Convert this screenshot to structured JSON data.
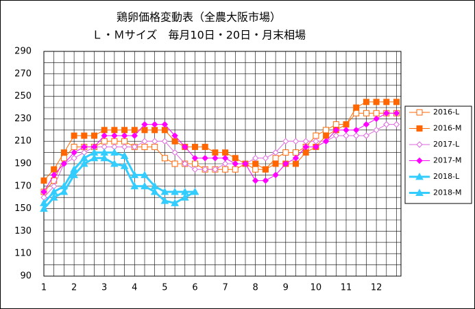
{
  "chart_data": {
    "type": "line",
    "title": "鶏卵価格変動表（全農大阪市場）",
    "subtitle": "Ｌ・Ｍサイズ　毎月10日・20日・月末相場",
    "categories": [
      "1",
      null,
      null,
      "2",
      null,
      null,
      "3",
      null,
      null,
      "4",
      null,
      null,
      "5",
      null,
      null,
      "6",
      null,
      null,
      "7",
      null,
      null,
      "8",
      null,
      null,
      "9",
      null,
      null,
      "10",
      null,
      null,
      "11",
      null,
      null,
      "12",
      null,
      null
    ],
    "ylim": [
      90,
      290
    ],
    "yticks": [
      90,
      110,
      130,
      150,
      170,
      190,
      210,
      230,
      250,
      270,
      290
    ],
    "grid": true,
    "legend": "right",
    "series": [
      {
        "name": "2016-L",
        "color": "#ff6600",
        "marker": "square",
        "filled": false,
        "width": 1,
        "values": [
          165,
          175,
          195,
          205,
          205,
          205,
          210,
          210,
          210,
          205,
          205,
          205,
          195,
          190,
          190,
          190,
          185,
          185,
          185,
          185,
          190,
          185,
          185,
          195,
          200,
          200,
          205,
          215,
          220,
          225,
          225,
          235,
          235,
          235,
          235,
          235
        ]
      },
      {
        "name": "2016-M",
        "color": "#ff6600",
        "marker": "square",
        "filled": true,
        "width": 1,
        "values": [
          175,
          185,
          200,
          215,
          215,
          215,
          220,
          220,
          220,
          220,
          220,
          220,
          220,
          210,
          205,
          205,
          205,
          200,
          200,
          195,
          190,
          190,
          185,
          190,
          190,
          190,
          200,
          205,
          215,
          220,
          225,
          240,
          245,
          245,
          245,
          245
        ]
      },
      {
        "name": "2017-L",
        "color": "#dd66dd",
        "marker": "diamond",
        "filled": false,
        "width": 1,
        "values": [
          160,
          170,
          190,
          195,
          200,
          205,
          205,
          205,
          205,
          205,
          210,
          210,
          210,
          200,
          190,
          185,
          185,
          185,
          190,
          190,
          190,
          195,
          195,
          200,
          210,
          210,
          210,
          210,
          210,
          215,
          215,
          215,
          215,
          220,
          225,
          225
        ]
      },
      {
        "name": "2017-M",
        "color": "#ff00ff",
        "marker": "diamond",
        "filled": true,
        "width": 1,
        "values": [
          165,
          180,
          190,
          200,
          205,
          205,
          215,
          215,
          215,
          215,
          225,
          225,
          225,
          215,
          205,
          195,
          195,
          195,
          195,
          190,
          190,
          175,
          175,
          180,
          190,
          195,
          205,
          205,
          210,
          220,
          220,
          220,
          225,
          230,
          235,
          235
        ]
      },
      {
        "name": "2018-L",
        "color": "#33ccff",
        "marker": "triangle",
        "filled": false,
        "width": 3,
        "values": [
          150,
          160,
          165,
          180,
          190,
          195,
          195,
          190,
          188,
          170,
          170,
          165,
          157,
          155,
          160,
          165,
          null,
          null,
          null,
          null,
          null,
          null,
          null,
          null,
          null,
          null,
          null,
          null,
          null,
          null,
          null,
          null,
          null,
          null,
          null,
          null
        ]
      },
      {
        "name": "2018-M",
        "color": "#33ccff",
        "marker": "triangle",
        "filled": true,
        "width": 3,
        "values": [
          155,
          165,
          170,
          185,
          195,
          200,
          200,
          200,
          197,
          180,
          180,
          170,
          165,
          165,
          165,
          165,
          null,
          null,
          null,
          null,
          null,
          null,
          null,
          null,
          null,
          null,
          null,
          null,
          null,
          null,
          null,
          null,
          null,
          null,
          null,
          null
        ]
      }
    ]
  }
}
